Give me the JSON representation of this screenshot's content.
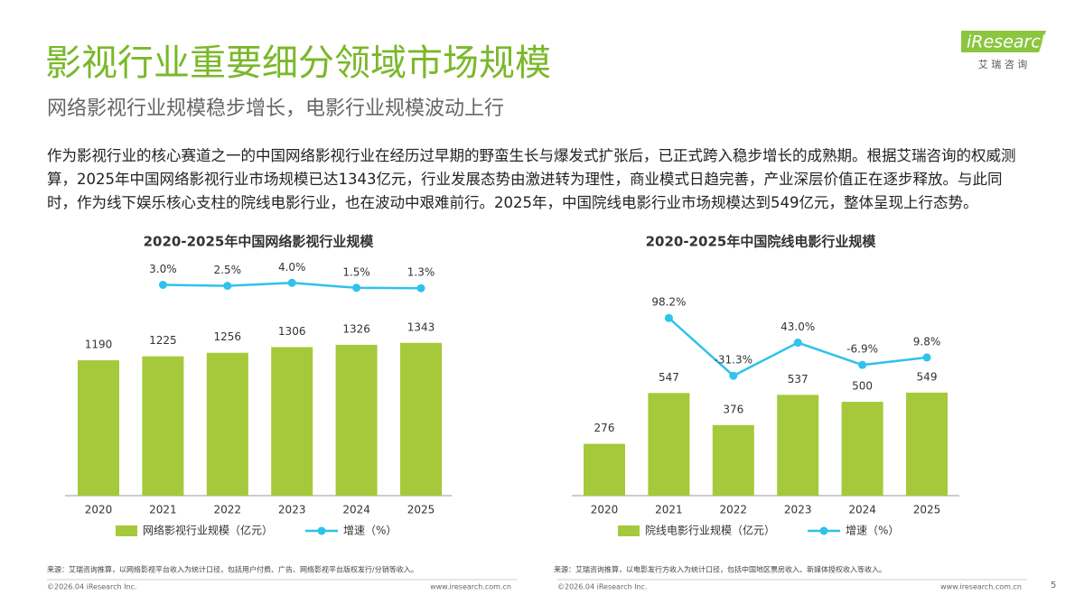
{
  "header": {
    "title": "影视行业重要细分领域市场规模",
    "subtitle": "网络影视行业规模稳步增长，电影行业规模波动上行",
    "logo": "iResearch",
    "logo_sub": "艾 瑞 咨 询"
  },
  "body": "作为影视行业的核心赛道之一的中国网络影视行业在经历过早期的野蛮生长与爆发式扩张后，已正式跨入稳步增长的成熟期。根据艾瑞咨询的权威测算，2025年中国网络影视行业市场规模已达1343亿元，行业发展态势由激进转为理性，商业模式日趋完善，产业深层价值正在逐步释放。与此同时，作为线下娱乐核心支柱的院线电影行业，也在波动中艰难前行。2025年，中国院线电影行业市场规模达到549亿元，整体呈现上行态势。",
  "chart_data": [
    {
      "type": "bar",
      "title": "2020-2025年中国网络影视行业规模",
      "categories": [
        "2020",
        "2021",
        "2022",
        "2023",
        "2024",
        "2025"
      ],
      "series": [
        {
          "name": "网络影视行业规模（亿元）",
          "color": "#a5c93a",
          "values": [
            1190,
            1225,
            1256,
            1306,
            1326,
            1343
          ]
        },
        {
          "name": "增速（%）",
          "color": "#2fc2ec",
          "axis": "y2",
          "type": "line",
          "values": [
            null,
            3.0,
            2.5,
            4.0,
            1.5,
            1.3
          ],
          "value_labels": [
            null,
            "3.0%",
            "2.5%",
            "4.0%",
            "1.5%",
            "1.3%"
          ]
        }
      ],
      "ylim": [
        0,
        2000
      ],
      "y2lim": [
        -103,
        11.4
      ],
      "source": "来源：艾瑞咨询推算，以网络影视平台收入为统计口径，包括用户付费、广告、网络影视平台版权发行/分销等收入。"
    },
    {
      "type": "bar",
      "title": "2020-2025年中国院线电影行业规模",
      "categories": [
        "2020",
        "2021",
        "2022",
        "2023",
        "2024",
        "2025"
      ],
      "series": [
        {
          "name": "院线电影行业规模（亿元）",
          "color": "#a5c93a",
          "values": [
            276,
            547,
            376,
            537,
            500,
            549
          ]
        },
        {
          "name": "增速（%）",
          "color": "#2fc2ec",
          "axis": "y2",
          "type": "line",
          "values": [
            null,
            98.2,
            -31.3,
            43.0,
            -6.9,
            9.8
          ],
          "value_labels": [
            null,
            "98.2%",
            "-31.3%",
            "43.0%",
            "-6.9%",
            "9.8%"
          ]
        }
      ],
      "ylim": [
        0,
        1212
      ],
      "y2lim": [
        -300,
        210
      ],
      "source": "来源：艾瑞咨询推算，以电影发行方收入为统计口径，包括中国地区票房收入、新媒体授权收入等收入。"
    }
  ],
  "footer": {
    "copyright": "©2026.04 iResearch Inc.",
    "url": "www.iresearch.com.cn",
    "page": "5"
  }
}
